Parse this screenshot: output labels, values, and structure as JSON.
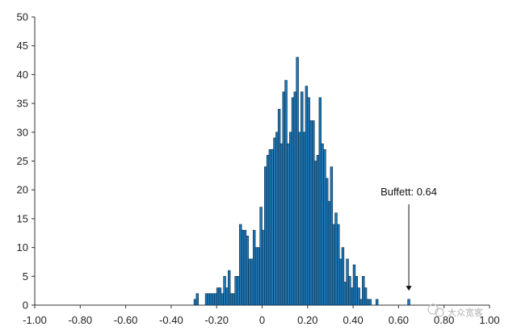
{
  "chart_data": {
    "type": "bar",
    "subtype": "histogram",
    "title": "",
    "xlabel": "",
    "ylabel": "",
    "xlim": [
      -1.0,
      1.0
    ],
    "ylim": [
      0,
      50
    ],
    "bin_width": 0.01,
    "x_ticks": [
      -1.0,
      -0.8,
      -0.6,
      -0.4,
      -0.2,
      0,
      0.2,
      0.4,
      0.6,
      0.8,
      1.0
    ],
    "x_tick_labels": [
      "-1.00",
      "-0.80",
      "-0.60",
      "-0.40",
      "-0.20",
      "0",
      "0.20",
      "0.40",
      "0.60",
      "0.80",
      "1.00"
    ],
    "y_ticks": [
      0,
      5,
      10,
      15,
      20,
      25,
      30,
      35,
      40,
      45,
      50
    ],
    "y_tick_labels": [
      "0",
      "5",
      "10",
      "15",
      "20",
      "25",
      "30",
      "35",
      "40",
      "45",
      "50"
    ],
    "bar_color": "#1f77b4",
    "bar_edge_color": "#0b2a44",
    "bins": [
      {
        "x": -0.3,
        "count": 1
      },
      {
        "x": -0.29,
        "count": 2
      },
      {
        "x": -0.25,
        "count": 2
      },
      {
        "x": -0.24,
        "count": 2
      },
      {
        "x": -0.23,
        "count": 2
      },
      {
        "x": -0.22,
        "count": 2
      },
      {
        "x": -0.21,
        "count": 2
      },
      {
        "x": -0.2,
        "count": 3
      },
      {
        "x": -0.19,
        "count": 3
      },
      {
        "x": -0.18,
        "count": 2
      },
      {
        "x": -0.17,
        "count": 5
      },
      {
        "x": -0.16,
        "count": 3
      },
      {
        "x": -0.15,
        "count": 6
      },
      {
        "x": -0.14,
        "count": 2
      },
      {
        "x": -0.13,
        "count": 2
      },
      {
        "x": -0.12,
        "count": 5
      },
      {
        "x": -0.11,
        "count": 5
      },
      {
        "x": -0.1,
        "count": 14
      },
      {
        "x": -0.09,
        "count": 13
      },
      {
        "x": -0.08,
        "count": 13
      },
      {
        "x": -0.07,
        "count": 12
      },
      {
        "x": -0.06,
        "count": 8
      },
      {
        "x": -0.05,
        "count": 8
      },
      {
        "x": -0.04,
        "count": 13
      },
      {
        "x": -0.03,
        "count": 10
      },
      {
        "x": -0.02,
        "count": 10
      },
      {
        "x": -0.01,
        "count": 17
      },
      {
        "x": 0.0,
        "count": 13
      },
      {
        "x": 0.01,
        "count": 24
      },
      {
        "x": 0.02,
        "count": 26
      },
      {
        "x": 0.03,
        "count": 27
      },
      {
        "x": 0.04,
        "count": 27
      },
      {
        "x": 0.05,
        "count": 29
      },
      {
        "x": 0.06,
        "count": 30
      },
      {
        "x": 0.07,
        "count": 34
      },
      {
        "x": 0.08,
        "count": 28
      },
      {
        "x": 0.09,
        "count": 37
      },
      {
        "x": 0.1,
        "count": 39
      },
      {
        "x": 0.11,
        "count": 28
      },
      {
        "x": 0.12,
        "count": 30
      },
      {
        "x": 0.13,
        "count": 36
      },
      {
        "x": 0.14,
        "count": 37
      },
      {
        "x": 0.15,
        "count": 43
      },
      {
        "x": 0.16,
        "count": 30
      },
      {
        "x": 0.17,
        "count": 37
      },
      {
        "x": 0.18,
        "count": 30
      },
      {
        "x": 0.19,
        "count": 38
      },
      {
        "x": 0.2,
        "count": 36
      },
      {
        "x": 0.21,
        "count": 32
      },
      {
        "x": 0.22,
        "count": 32
      },
      {
        "x": 0.23,
        "count": 25
      },
      {
        "x": 0.24,
        "count": 26
      },
      {
        "x": 0.25,
        "count": 36
      },
      {
        "x": 0.26,
        "count": 28
      },
      {
        "x": 0.27,
        "count": 27
      },
      {
        "x": 0.28,
        "count": 22
      },
      {
        "x": 0.29,
        "count": 18
      },
      {
        "x": 0.3,
        "count": 24
      },
      {
        "x": 0.31,
        "count": 14
      },
      {
        "x": 0.32,
        "count": 16
      },
      {
        "x": 0.33,
        "count": 14
      },
      {
        "x": 0.34,
        "count": 8
      },
      {
        "x": 0.35,
        "count": 10
      },
      {
        "x": 0.36,
        "count": 4
      },
      {
        "x": 0.37,
        "count": 8
      },
      {
        "x": 0.38,
        "count": 5
      },
      {
        "x": 0.39,
        "count": 3
      },
      {
        "x": 0.4,
        "count": 7
      },
      {
        "x": 0.41,
        "count": 5
      },
      {
        "x": 0.42,
        "count": 3
      },
      {
        "x": 0.43,
        "count": 1
      },
      {
        "x": 0.44,
        "count": 5
      },
      {
        "x": 0.45,
        "count": 3
      },
      {
        "x": 0.46,
        "count": 1
      },
      {
        "x": 0.47,
        "count": 1
      },
      {
        "x": 0.5,
        "count": 1
      },
      {
        "x": 0.64,
        "count": 1
      }
    ],
    "annotations": [
      {
        "text": "Buffett: 0.64",
        "x": 0.64,
        "arrow": true,
        "arrow_from_y": 17.5,
        "arrow_to_y": 2.5
      }
    ]
  },
  "watermark": {
    "text": "大众宽客",
    "icon": "wechat-icon"
  }
}
